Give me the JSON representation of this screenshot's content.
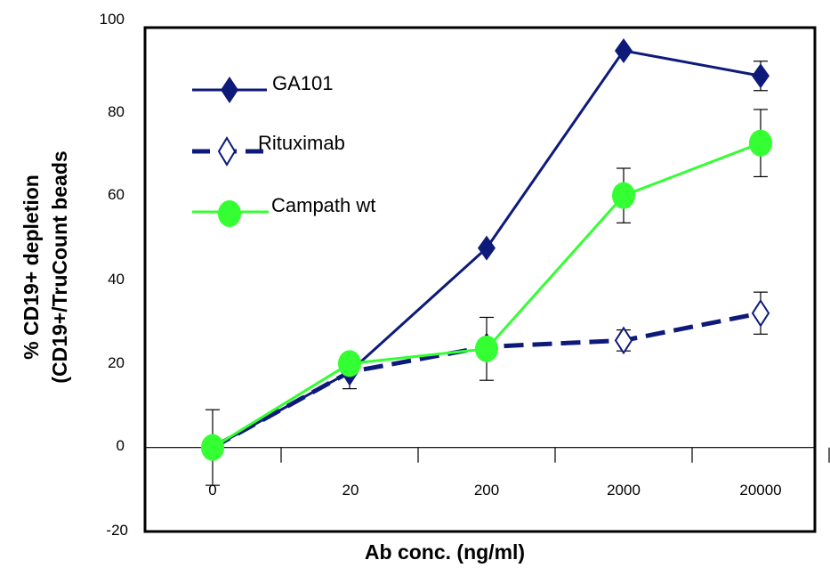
{
  "chart_data": {
    "type": "line",
    "title": "",
    "xlabel": "Ab conc. (ng/ml)",
    "ylabel_line1": "% CD19+ depletion",
    "ylabel_line2": "(CD19+/TruCount beads",
    "categories": [
      "0",
      "20",
      "200",
      "2000",
      "20000"
    ],
    "y_ticks": [
      "100",
      "80",
      "60",
      "40",
      "20",
      "0",
      "-20"
    ],
    "ylim": [
      -20,
      100
    ],
    "grid": false,
    "legend_position": "top-left",
    "series": [
      {
        "name": "GA101",
        "values": [
          0,
          18,
          47.5,
          94.5,
          88.5
        ],
        "errors": [
          null,
          null,
          null,
          null,
          3.5
        ],
        "color": "#0d1a7a",
        "line": "solid",
        "marker": "diamond-filled"
      },
      {
        "name": "Rituximab",
        "values": [
          0,
          18,
          24,
          25.5,
          32
        ],
        "errors": [
          null,
          4,
          null,
          2.5,
          5
        ],
        "color": "#0d1a7a",
        "line": "dashed",
        "marker": "diamond-open"
      },
      {
        "name": "Campath wt",
        "values": [
          0,
          20,
          23.5,
          60,
          72.5
        ],
        "errors": [
          9,
          null,
          7.5,
          6.5,
          8
        ],
        "color": "#33ff33",
        "line": "solid",
        "marker": "circle-filled"
      }
    ]
  }
}
